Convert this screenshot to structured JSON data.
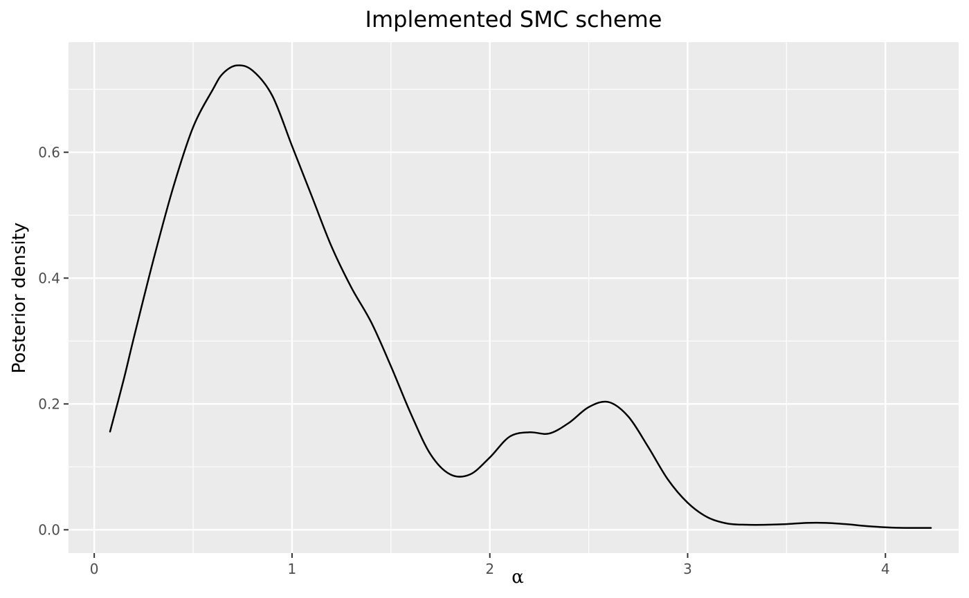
{
  "chart_data": {
    "type": "line",
    "title": "Implemented SMC scheme",
    "xlabel": "α",
    "ylabel": "Posterior density",
    "xlim": [
      -0.13,
      4.37
    ],
    "ylim": [
      -0.037,
      0.775
    ],
    "x_ticks": [
      0,
      1,
      2,
      3,
      4
    ],
    "x_tick_labels": [
      "0",
      "1",
      "2",
      "3",
      "4"
    ],
    "y_ticks": [
      0.0,
      0.2,
      0.4,
      0.6
    ],
    "y_tick_labels": [
      "0.0",
      "0.2",
      "0.4",
      "0.6"
    ],
    "grid": true,
    "panel_background": "#ebebeb",
    "grid_color": "#ffffff",
    "line_color": "#000000",
    "series": [
      {
        "x": [
          0.08,
          0.15,
          0.2,
          0.3,
          0.4,
          0.5,
          0.6,
          0.65,
          0.72,
          0.8,
          0.9,
          1.0,
          1.1,
          1.2,
          1.3,
          1.4,
          1.5,
          1.6,
          1.7,
          1.8,
          1.9,
          2.0,
          2.1,
          2.2,
          2.3,
          2.4,
          2.5,
          2.6,
          2.7,
          2.8,
          2.9,
          3.0,
          3.1,
          3.2,
          3.3,
          3.4,
          3.5,
          3.6,
          3.7,
          3.8,
          3.9,
          4.0,
          4.1,
          4.23
        ],
        "y": [
          0.156,
          0.24,
          0.305,
          0.43,
          0.545,
          0.64,
          0.7,
          0.725,
          0.738,
          0.73,
          0.69,
          0.61,
          0.53,
          0.45,
          0.385,
          0.33,
          0.26,
          0.185,
          0.12,
          0.088,
          0.088,
          0.115,
          0.148,
          0.155,
          0.153,
          0.17,
          0.195,
          0.203,
          0.18,
          0.132,
          0.08,
          0.043,
          0.02,
          0.01,
          0.008,
          0.008,
          0.009,
          0.011,
          0.011,
          0.009,
          0.006,
          0.004,
          0.003,
          0.003
        ]
      }
    ]
  }
}
